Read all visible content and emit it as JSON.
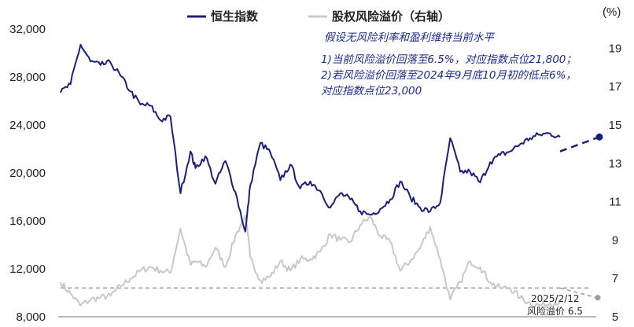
{
  "chart_data": {
    "type": "line",
    "legend": {
      "placement": "top",
      "items": [
        {
          "label": "恒生指数",
          "color": "#1b1f7a"
        },
        {
          "label": "股权风险溢价（右轴）",
          "color": "#c8c8c8"
        }
      ]
    },
    "left_axis": {
      "ylim": [
        8000,
        32000
      ],
      "ticks": [
        "32,000",
        "28,000",
        "24,000",
        "20,000",
        "16,000",
        "12,000",
        "8,000"
      ]
    },
    "right_axis": {
      "unit": "(%)",
      "ylim": [
        5,
        20
      ],
      "ticks": [
        "19",
        "17",
        "15",
        "13",
        "11",
        "9",
        "7",
        "5"
      ]
    },
    "series": [
      {
        "name": "恒生指数",
        "axis": "left",
        "color": "#1b1f7a",
        "x": [
          0,
          0.02,
          0.04,
          0.06,
          0.08,
          0.1,
          0.12,
          0.14,
          0.16,
          0.18,
          0.2,
          0.22,
          0.24,
          0.26,
          0.27,
          0.29,
          0.31,
          0.33,
          0.35,
          0.37,
          0.38,
          0.4,
          0.42,
          0.44,
          0.46,
          0.48,
          0.5,
          0.52,
          0.54,
          0.56,
          0.58,
          0.6,
          0.62,
          0.64,
          0.66,
          0.68,
          0.7,
          0.72,
          0.74,
          0.76,
          0.78,
          0.8,
          0.82,
          0.84,
          0.86,
          0.88,
          0.9,
          0.92,
          0.94,
          0.96,
          0.98,
          1.0
        ],
        "values": [
          26700,
          27400,
          30700,
          29300,
          29000,
          29200,
          28100,
          26800,
          25700,
          25600,
          24400,
          24700,
          18300,
          21800,
          20400,
          21400,
          19100,
          21000,
          18400,
          15100,
          19000,
          22500,
          21700,
          19400,
          20700,
          18700,
          19300,
          18500,
          17100,
          18300,
          17800,
          16800,
          16500,
          17000,
          17800,
          19300,
          18000,
          17100,
          16800,
          17500,
          22900,
          20100,
          20100,
          19200,
          20900,
          21500,
          21800,
          22400,
          22900,
          23200,
          23300,
          23000
        ]
      },
      {
        "name": "股权风险溢价（右轴）",
        "axis": "right",
        "color": "#c8c8c8",
        "x": [
          0,
          0.02,
          0.04,
          0.06,
          0.08,
          0.1,
          0.12,
          0.14,
          0.16,
          0.18,
          0.2,
          0.22,
          0.24,
          0.26,
          0.27,
          0.29,
          0.31,
          0.33,
          0.35,
          0.37,
          0.38,
          0.4,
          0.42,
          0.44,
          0.46,
          0.48,
          0.5,
          0.52,
          0.54,
          0.56,
          0.58,
          0.6,
          0.62,
          0.64,
          0.66,
          0.68,
          0.7,
          0.72,
          0.74,
          0.76,
          0.78,
          0.8,
          0.82,
          0.84,
          0.86,
          0.88,
          0.9,
          0.92,
          0.94,
          0.96,
          0.98,
          1.0
        ],
        "values": [
          6.8,
          6.2,
          5.6,
          5.9,
          6.0,
          6.1,
          6.6,
          7.0,
          7.4,
          7.6,
          7.4,
          7.3,
          9.6,
          7.7,
          7.9,
          7.6,
          8.6,
          7.6,
          9.2,
          10.3,
          8.1,
          6.9,
          7.1,
          7.9,
          7.4,
          8.0,
          8.0,
          8.4,
          9.3,
          9.0,
          8.9,
          9.8,
          10.2,
          9.2,
          8.9,
          7.4,
          7.9,
          8.6,
          9.7,
          8.0,
          5.9,
          6.8,
          7.9,
          7.6,
          6.8,
          6.5,
          6.5,
          6.0,
          5.7,
          5.6,
          5.7,
          5.8
        ]
      }
    ],
    "projection": {
      "name": "恒生指数",
      "style": "dashed",
      "from": 21800,
      "to": 23000
    },
    "reference_line": {
      "axis": "right",
      "value": 6.5,
      "style": "dashed"
    },
    "end_point": {
      "axis": "right",
      "value": 6.0
    },
    "annotation": [
      "假设无风险利率和盈利维持当前水平",
      "1)当前风险溢价回落至6.5%，对应指数点位21,800；",
      "2)若风险溢价回落至2024年9月底10月初的低点6%，",
      "对应指数点位23,000"
    ],
    "end_labels": [
      "2025/2/12",
      "风险溢价 6.5"
    ]
  }
}
